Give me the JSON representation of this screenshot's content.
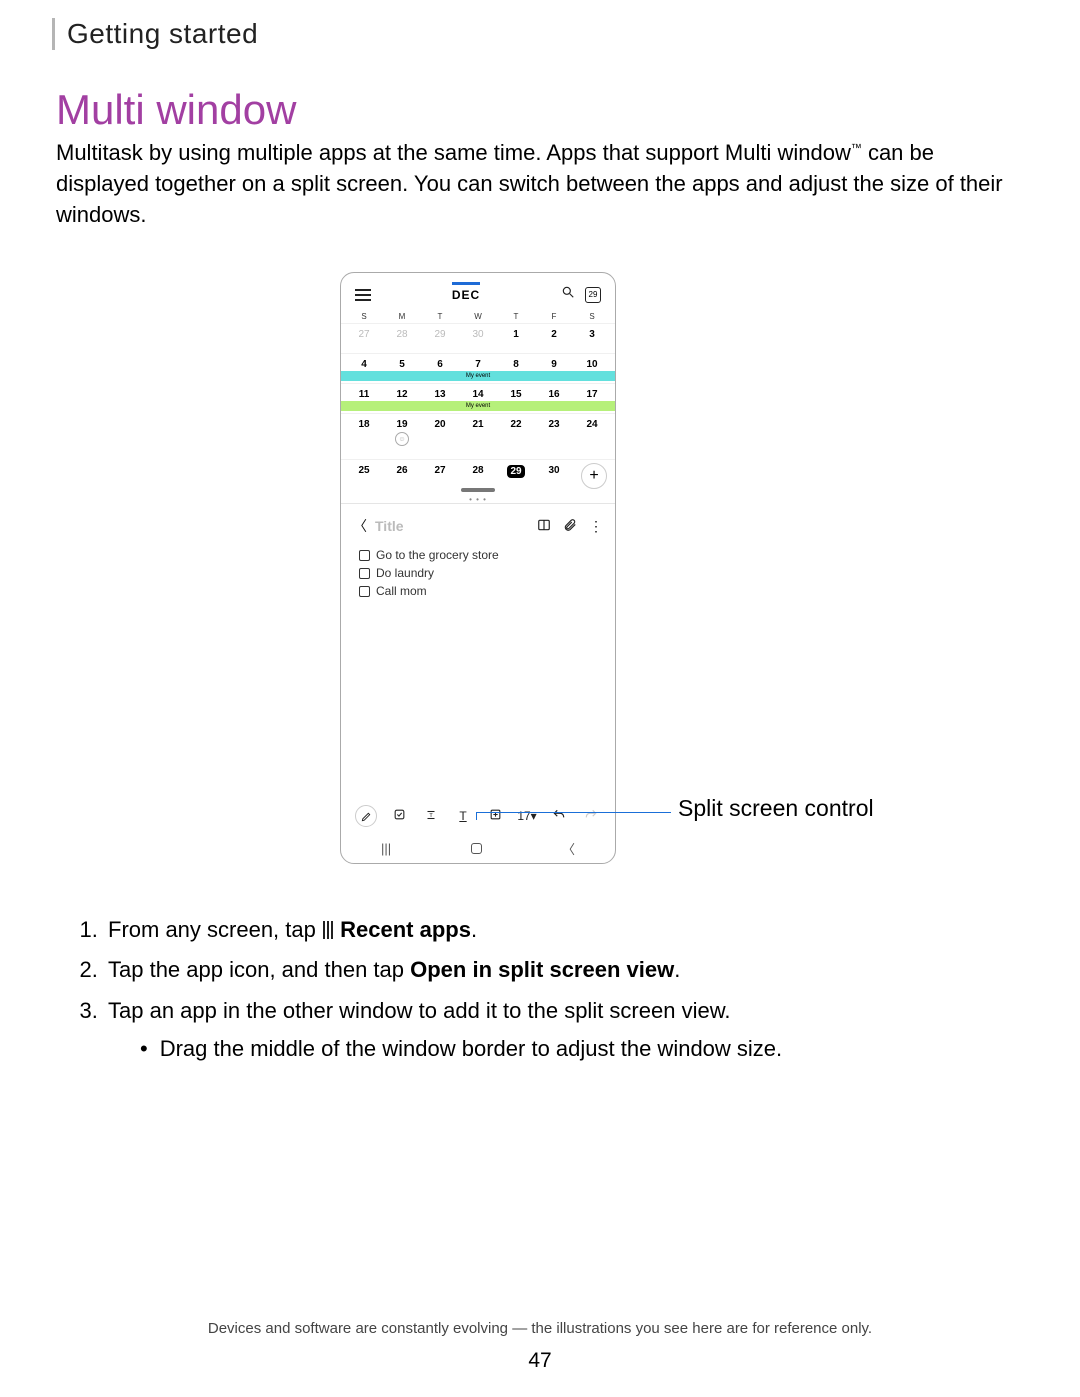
{
  "header": {
    "breadcrumb": "Getting started"
  },
  "section": {
    "title": "Multi window",
    "title_color": "#a23fa2",
    "intro_pre": "Multitask by using multiple apps at the same time. Apps that support Multi window",
    "intro_post": " can be displayed together on a split screen. You can switch between the apps and adjust the size of their windows."
  },
  "callout": {
    "label": "Split screen control",
    "line_color": "#1a6fd8"
  },
  "calendar": {
    "month": "DEC",
    "today_badge": "29",
    "dow": [
      "S",
      "M",
      "T",
      "W",
      "T",
      "F",
      "S"
    ],
    "weeks": [
      {
        "days": [
          "27",
          "28",
          "29",
          "30",
          "1",
          "2",
          "3"
        ],
        "dim": [
          0,
          1,
          2,
          3
        ]
      },
      {
        "days": [
          "4",
          "5",
          "6",
          "7",
          "8",
          "9",
          "10"
        ],
        "event": {
          "label": "My event",
          "color": "#63e0dd",
          "start": 0,
          "end": 7
        }
      },
      {
        "days": [
          "11",
          "12",
          "13",
          "14",
          "15",
          "16",
          "17"
        ],
        "event": {
          "label": "My event",
          "color": "#b6f07a",
          "start": 0,
          "end": 7
        }
      },
      {
        "days": [
          "18",
          "19",
          "20",
          "21",
          "22",
          "23",
          "24"
        ],
        "smile_col": 1
      },
      {
        "days": [
          "25",
          "26",
          "27",
          "28",
          "29",
          "30",
          ""
        ],
        "today_col": 4,
        "plus": true
      }
    ]
  },
  "notes": {
    "title_placeholder": "Title",
    "items": [
      "Go to the grocery store",
      "Do laundry",
      "Call mom"
    ],
    "toolbar_fontsize": "17▾"
  },
  "instructions": {
    "step1_pre": "From any screen, tap",
    "step1_bold": "Recent apps",
    "step1_post": ".",
    "step2_pre": "Tap the app icon, and then tap ",
    "step2_bold": "Open in split screen view",
    "step2_post": ".",
    "step3": "Tap an app in the other window to add it to the split screen view.",
    "step3_sub": "Drag the middle of the window border to adjust the window size."
  },
  "footer": {
    "note": "Devices and software are constantly evolving — the illustrations you see here are for reference only.",
    "page": "47"
  }
}
